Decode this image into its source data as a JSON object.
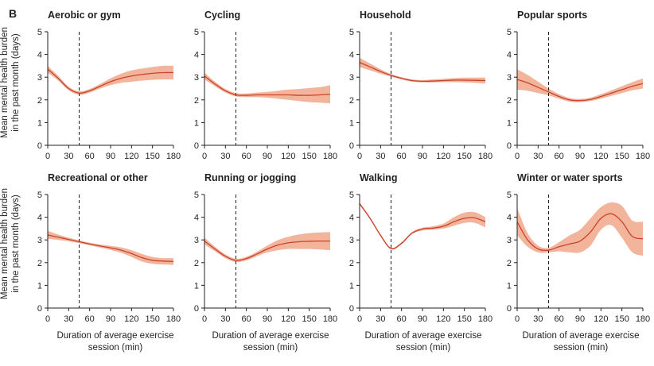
{
  "figure": {
    "panel_label": "B",
    "ylabel_line1": "Mean mental health burden",
    "ylabel_line2": "in the past month (days)",
    "xlabel_line1": "Duration of average exercise",
    "xlabel_line2": "session (min)"
  },
  "colors": {
    "line": "#c8442d",
    "band": "#f3b49c",
    "axis": "#231f20"
  },
  "chart_data": [
    {
      "type": "line",
      "title": "Aerobic or gym",
      "xlabel": "Duration of average exercise session (min)",
      "ylabel": "Mean mental health burden in the past month (days)",
      "xlim": [
        0,
        180
      ],
      "ylim": [
        0,
        5
      ],
      "xticks": [
        0,
        30,
        60,
        90,
        120,
        150,
        180
      ],
      "yticks": [
        0,
        1,
        2,
        3,
        4,
        5
      ],
      "reference_x": 45,
      "x": [
        0,
        15,
        30,
        45,
        60,
        75,
        90,
        105,
        120,
        135,
        150,
        165,
        180
      ],
      "y": [
        3.35,
        2.95,
        2.5,
        2.3,
        2.4,
        2.6,
        2.8,
        2.95,
        3.05,
        3.12,
        3.17,
        3.2,
        3.2
      ],
      "lower": [
        3.2,
        2.85,
        2.42,
        2.22,
        2.32,
        2.5,
        2.65,
        2.75,
        2.8,
        2.85,
        2.88,
        2.9,
        2.9
      ],
      "upper": [
        3.5,
        3.05,
        2.58,
        2.38,
        2.48,
        2.7,
        2.95,
        3.15,
        3.3,
        3.38,
        3.45,
        3.5,
        3.5
      ]
    },
    {
      "type": "line",
      "title": "Cycling",
      "xlabel": "Duration of average exercise session (min)",
      "ylabel": "Mean mental health burden in the past month (days)",
      "xlim": [
        0,
        180
      ],
      "ylim": [
        0,
        5
      ],
      "xticks": [
        0,
        30,
        60,
        90,
        120,
        150,
        180
      ],
      "yticks": [
        0,
        1,
        2,
        3,
        4,
        5
      ],
      "reference_x": 45,
      "x": [
        0,
        15,
        30,
        45,
        60,
        75,
        90,
        105,
        120,
        135,
        150,
        165,
        180
      ],
      "y": [
        3.05,
        2.7,
        2.4,
        2.22,
        2.2,
        2.22,
        2.22,
        2.22,
        2.22,
        2.2,
        2.2,
        2.22,
        2.25
      ],
      "lower": [
        2.9,
        2.6,
        2.32,
        2.15,
        2.12,
        2.12,
        2.1,
        2.05,
        2.0,
        1.95,
        1.9,
        1.88,
        1.85
      ],
      "upper": [
        3.2,
        2.8,
        2.48,
        2.3,
        2.28,
        2.32,
        2.35,
        2.4,
        2.45,
        2.48,
        2.52,
        2.56,
        2.65
      ]
    },
    {
      "type": "line",
      "title": "Household",
      "xlabel": "Duration of average exercise session (min)",
      "ylabel": "Mean mental health burden in the past month (days)",
      "xlim": [
        0,
        180
      ],
      "ylim": [
        0,
        5
      ],
      "xticks": [
        0,
        30,
        60,
        90,
        120,
        150,
        180
      ],
      "yticks": [
        0,
        1,
        2,
        3,
        4,
        5
      ],
      "reference_x": 45,
      "x": [
        0,
        15,
        30,
        45,
        60,
        75,
        90,
        105,
        120,
        135,
        150,
        165,
        180
      ],
      "y": [
        3.65,
        3.45,
        3.25,
        3.08,
        2.95,
        2.85,
        2.82,
        2.83,
        2.85,
        2.87,
        2.87,
        2.86,
        2.85
      ],
      "lower": [
        3.45,
        3.3,
        3.15,
        3.02,
        2.9,
        2.8,
        2.77,
        2.77,
        2.78,
        2.78,
        2.77,
        2.75,
        2.72
      ],
      "upper": [
        3.85,
        3.6,
        3.35,
        3.14,
        3.0,
        2.9,
        2.87,
        2.9,
        2.93,
        2.96,
        2.98,
        2.98,
        2.98
      ]
    },
    {
      "type": "line",
      "title": "Popular sports",
      "xlabel": "Duration of average exercise session (min)",
      "ylabel": "Mean mental health burden in the past month (days)",
      "xlim": [
        0,
        180
      ],
      "ylim": [
        0,
        5
      ],
      "xticks": [
        0,
        30,
        60,
        90,
        120,
        150,
        180
      ],
      "yticks": [
        0,
        1,
        2,
        3,
        4,
        5
      ],
      "reference_x": 45,
      "x": [
        0,
        15,
        30,
        45,
        60,
        75,
        90,
        105,
        120,
        135,
        150,
        165,
        180
      ],
      "y": [
        2.9,
        2.75,
        2.55,
        2.35,
        2.15,
        2.0,
        1.97,
        2.02,
        2.15,
        2.3,
        2.45,
        2.6,
        2.72
      ],
      "lower": [
        2.45,
        2.4,
        2.3,
        2.2,
        2.05,
        1.92,
        1.9,
        1.95,
        2.05,
        2.18,
        2.3,
        2.42,
        2.5
      ],
      "upper": [
        3.35,
        3.1,
        2.8,
        2.5,
        2.25,
        2.08,
        2.04,
        2.1,
        2.25,
        2.42,
        2.6,
        2.78,
        2.94
      ]
    },
    {
      "type": "line",
      "title": "Recreational or other",
      "xlabel": "Duration of average exercise session (min)",
      "ylabel": "Mean mental health burden in the past month (days)",
      "xlim": [
        0,
        180
      ],
      "ylim": [
        0,
        5
      ],
      "xticks": [
        0,
        30,
        60,
        90,
        120,
        150,
        180
      ],
      "yticks": [
        0,
        1,
        2,
        3,
        4,
        5
      ],
      "reference_x": 45,
      "x": [
        0,
        15,
        30,
        45,
        60,
        75,
        90,
        105,
        120,
        135,
        150,
        165,
        180
      ],
      "y": [
        3.22,
        3.12,
        3.02,
        2.92,
        2.82,
        2.73,
        2.65,
        2.55,
        2.4,
        2.22,
        2.1,
        2.07,
        2.05
      ],
      "lower": [
        3.05,
        3.0,
        2.94,
        2.86,
        2.76,
        2.66,
        2.56,
        2.43,
        2.25,
        2.05,
        1.95,
        1.92,
        1.9
      ],
      "upper": [
        3.4,
        3.24,
        3.1,
        2.98,
        2.88,
        2.8,
        2.74,
        2.67,
        2.55,
        2.38,
        2.25,
        2.2,
        2.2
      ]
    },
    {
      "type": "line",
      "title": "Running or jogging",
      "xlabel": "Duration of average exercise session (min)",
      "ylabel": "Mean mental health burden in the past month (days)",
      "xlim": [
        0,
        180
      ],
      "ylim": [
        0,
        5
      ],
      "xticks": [
        0,
        30,
        60,
        90,
        120,
        150,
        180
      ],
      "yticks": [
        0,
        1,
        2,
        3,
        4,
        5
      ],
      "reference_x": 45,
      "x": [
        0,
        15,
        30,
        45,
        60,
        75,
        90,
        105,
        120,
        135,
        150,
        165,
        180
      ],
      "y": [
        2.95,
        2.6,
        2.28,
        2.1,
        2.18,
        2.38,
        2.6,
        2.77,
        2.87,
        2.92,
        2.94,
        2.95,
        2.95
      ],
      "lower": [
        2.8,
        2.5,
        2.2,
        2.03,
        2.1,
        2.28,
        2.45,
        2.55,
        2.6,
        2.6,
        2.6,
        2.58,
        2.55
      ],
      "upper": [
        3.1,
        2.7,
        2.36,
        2.17,
        2.26,
        2.48,
        2.75,
        2.99,
        3.14,
        3.24,
        3.3,
        3.33,
        3.35
      ]
    },
    {
      "type": "line",
      "title": "Walking",
      "xlabel": "Duration of average exercise session (min)",
      "ylabel": "Mean mental health burden in the past month (days)",
      "xlim": [
        0,
        180
      ],
      "ylim": [
        0,
        5
      ],
      "xticks": [
        0,
        30,
        60,
        90,
        120,
        150,
        180
      ],
      "yticks": [
        0,
        1,
        2,
        3,
        4,
        5
      ],
      "reference_x": 45,
      "x": [
        0,
        15,
        30,
        45,
        60,
        75,
        90,
        105,
        120,
        135,
        150,
        165,
        180
      ],
      "y": [
        4.6,
        3.95,
        3.2,
        2.62,
        2.85,
        3.3,
        3.48,
        3.52,
        3.6,
        3.8,
        3.95,
        3.97,
        3.8
      ],
      "lower": [
        4.55,
        3.9,
        3.15,
        2.58,
        2.8,
        3.25,
        3.42,
        3.45,
        3.5,
        3.62,
        3.75,
        3.75,
        3.55
      ],
      "upper": [
        4.65,
        4.0,
        3.25,
        2.66,
        2.9,
        3.35,
        3.54,
        3.6,
        3.72,
        4.0,
        4.2,
        4.22,
        4.0
      ]
    },
    {
      "type": "line",
      "title": "Winter or water sports",
      "xlabel": "Duration of average exercise session (min)",
      "ylabel": "Mean mental health burden in the past month (days)",
      "xlim": [
        0,
        180
      ],
      "ylim": [
        0,
        5
      ],
      "xticks": [
        0,
        30,
        60,
        90,
        120,
        150,
        180
      ],
      "yticks": [
        0,
        1,
        2,
        3,
        4,
        5
      ],
      "reference_x": 45,
      "x": [
        0,
        15,
        30,
        45,
        60,
        75,
        90,
        105,
        120,
        135,
        150,
        165,
        180
      ],
      "y": [
        3.8,
        3.0,
        2.6,
        2.55,
        2.7,
        2.82,
        2.95,
        3.35,
        3.95,
        4.15,
        3.8,
        3.15,
        3.05
      ],
      "lower": [
        3.2,
        2.7,
        2.45,
        2.45,
        2.5,
        2.45,
        2.45,
        2.75,
        3.45,
        3.65,
        3.1,
        2.45,
        2.3
      ],
      "upper": [
        4.4,
        3.3,
        2.75,
        2.65,
        2.9,
        3.2,
        3.45,
        3.95,
        4.45,
        4.65,
        4.5,
        3.85,
        3.8
      ]
    }
  ]
}
